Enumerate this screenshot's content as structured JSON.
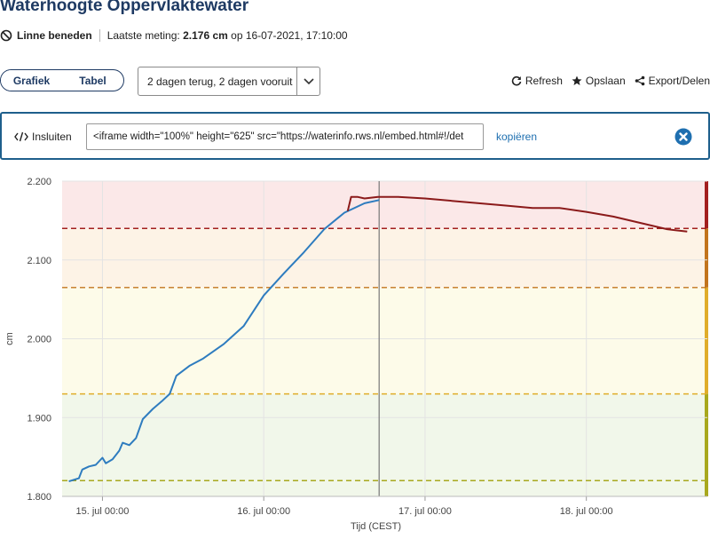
{
  "header": {
    "title": "Waterhoogte Oppervlaktewater",
    "location": "Linne beneden",
    "last_label": "Laatste meting:",
    "last_value": "2.176 cm",
    "last_suffix": "op 16-07-2021, 17:10:00"
  },
  "view_toggle": {
    "graph": "Grafiek",
    "table": "Tabel",
    "active": "graph"
  },
  "range_select": {
    "value": "2 dagen terug, 2 dagen vooruit"
  },
  "actions": {
    "refresh": "Refresh",
    "save": "Opslaan",
    "export": "Export/Delen"
  },
  "embed": {
    "label": "Insluiten",
    "code": "<iframe width=\"100%\" height=\"625\" src=\"https://waterinfo.rws.nl/embed.html#!/det",
    "copy": "kopiëren"
  },
  "colors": {
    "title": "#1e3a63",
    "measured": "#2e7cbf",
    "forecast": "#8b1a1a",
    "zone_red": "#fbe8e8",
    "zone_yellow": "#fdfbe9",
    "zone_green": "#f1f7ea"
  },
  "chart_data": {
    "type": "line",
    "xlabel": "Tijd (CEST)",
    "ylabel": "cm",
    "ylim": [
      1.8,
      2.2
    ],
    "yticks": [
      "1.800",
      "1.900",
      "2.000",
      "2.100",
      "2.200"
    ],
    "xlim": [
      "2021-07-14 18:00",
      "2021-07-18 18:00"
    ],
    "xticks": [
      {
        "t": "2021-07-15 00:00",
        "label": "15. jul 00:00"
      },
      {
        "t": "2021-07-16 00:00",
        "label": "16. jul 00:00"
      },
      {
        "t": "2021-07-17 00:00",
        "label": "17. jul 00:00"
      },
      {
        "t": "2021-07-18 00:00",
        "label": "18. jul 00:00"
      }
    ],
    "now": "2021-07-16 17:10",
    "grid": true,
    "thresholds": [
      {
        "value": 2.14,
        "color": "#a31f1f"
      },
      {
        "value": 2.065,
        "color": "#c2741d"
      },
      {
        "value": 1.93,
        "color": "#e0ad2a"
      },
      {
        "value": 1.82,
        "color": "#a8a81e"
      }
    ],
    "zones": [
      {
        "from": 2.14,
        "to": 2.2,
        "color": "#fbe8e8"
      },
      {
        "from": 2.065,
        "to": 2.14,
        "color": "#fdf3e6"
      },
      {
        "from": 1.93,
        "to": 2.065,
        "color": "#fdfbe9"
      },
      {
        "from": 1.8,
        "to": 1.93,
        "color": "#f1f7ea"
      }
    ],
    "series": [
      {
        "color": "#2e7cbf",
        "points": [
          [
            "2021-07-14 19:00",
            1.819
          ],
          [
            "2021-07-14 20:30",
            1.823
          ],
          [
            "2021-07-14 21:00",
            1.834
          ],
          [
            "2021-07-14 22:00",
            1.838
          ],
          [
            "2021-07-14 23:00",
            1.84
          ],
          [
            "2021-07-15 00:00",
            1.849
          ],
          [
            "2021-07-15 00:30",
            1.842
          ],
          [
            "2021-07-15 01:30",
            1.847
          ],
          [
            "2021-07-15 02:30",
            1.858
          ],
          [
            "2021-07-15 03:00",
            1.868
          ],
          [
            "2021-07-15 04:00",
            1.865
          ],
          [
            "2021-07-15 05:00",
            1.874
          ],
          [
            "2021-07-15 06:00",
            1.898
          ],
          [
            "2021-07-15 07:30",
            1.911
          ],
          [
            "2021-07-15 09:00",
            1.922
          ],
          [
            "2021-07-15 10:00",
            1.93
          ],
          [
            "2021-07-15 11:00",
            1.953
          ],
          [
            "2021-07-15 13:00",
            1.966
          ],
          [
            "2021-07-15 15:00",
            1.975
          ],
          [
            "2021-07-15 18:00",
            1.993
          ],
          [
            "2021-07-15 21:00",
            2.016
          ],
          [
            "2021-07-16 00:00",
            2.055
          ],
          [
            "2021-07-16 03:00",
            2.083
          ],
          [
            "2021-07-16 06:00",
            2.11
          ],
          [
            "2021-07-16 09:00",
            2.139
          ],
          [
            "2021-07-16 12:00",
            2.16
          ],
          [
            "2021-07-16 15:00",
            2.172
          ],
          [
            "2021-07-16 17:10",
            2.176
          ]
        ]
      },
      {
        "color": "#8b1a1a",
        "points": [
          [
            "2021-07-16 12:30",
            2.162
          ],
          [
            "2021-07-16 13:00",
            2.18
          ],
          [
            "2021-07-16 14:00",
            2.18
          ],
          [
            "2021-07-16 15:00",
            2.178
          ],
          [
            "2021-07-16 17:00",
            2.18
          ],
          [
            "2021-07-16 20:00",
            2.18
          ],
          [
            "2021-07-17 00:00",
            2.178
          ],
          [
            "2021-07-17 04:00",
            2.175
          ],
          [
            "2021-07-17 08:00",
            2.172
          ],
          [
            "2021-07-17 12:00",
            2.169
          ],
          [
            "2021-07-17 16:00",
            2.166
          ],
          [
            "2021-07-17 20:00",
            2.166
          ],
          [
            "2021-07-18 00:00",
            2.161
          ],
          [
            "2021-07-18 04:00",
            2.155
          ],
          [
            "2021-07-18 08:00",
            2.147
          ],
          [
            "2021-07-18 12:00",
            2.139
          ],
          [
            "2021-07-18 15:00",
            2.136
          ]
        ]
      }
    ]
  }
}
